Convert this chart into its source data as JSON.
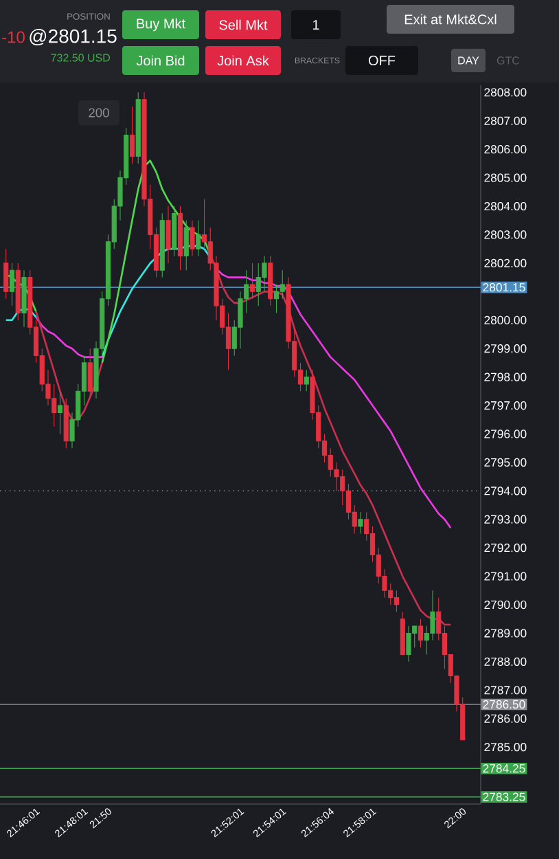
{
  "chart_data": {
    "type": "candlestick",
    "categories": [
      null,
      null,
      null,
      null,
      null,
      "21:46:01",
      null,
      null,
      null,
      null,
      null,
      null,
      null,
      "21:48:01",
      null,
      null,
      null,
      "21:50",
      null,
      null,
      null,
      null,
      null,
      null,
      null,
      null,
      null,
      null,
      null,
      null,
      null,
      null,
      null,
      null,
      null,
      null,
      null,
      null,
      null,
      "21:52:01",
      null,
      null,
      null,
      null,
      null,
      null,
      "21:54:01",
      null,
      null,
      null,
      null,
      null,
      null,
      null,
      "21:56:04",
      null,
      null,
      null,
      null,
      null,
      null,
      "21:58:01",
      null,
      null,
      null,
      null,
      null,
      null,
      null,
      null,
      null,
      null,
      null,
      null,
      null,
      null,
      "22:00"
    ],
    "ohlc": [
      [
        2802.0,
        2802.5,
        2800.75,
        2801.0
      ],
      [
        2801.0,
        2802.0,
        2800.5,
        2801.75
      ],
      [
        2801.75,
        2802.0,
        2800.0,
        2800.25
      ],
      [
        2800.25,
        2801.75,
        2799.75,
        2801.5
      ],
      [
        2801.5,
        2801.75,
        2799.5,
        2799.75
      ],
      [
        2799.75,
        2800.0,
        2798.5,
        2798.75
      ],
      [
        2798.75,
        2799.0,
        2797.5,
        2797.75
      ],
      [
        2797.75,
        2798.25,
        2797.0,
        2797.25
      ],
      [
        2797.25,
        2797.75,
        2796.25,
        2796.75
      ],
      [
        2796.75,
        2797.5,
        2796.0,
        2797.0
      ],
      [
        2797.0,
        2797.25,
        2795.5,
        2795.75
      ],
      [
        2795.75,
        2796.75,
        2795.5,
        2796.5
      ],
      [
        2796.5,
        2797.75,
        2796.25,
        2797.5
      ],
      [
        2797.5,
        2798.75,
        2797.0,
        2798.5
      ],
      [
        2798.5,
        2799.0,
        2797.25,
        2797.5
      ],
      [
        2797.5,
        2799.25,
        2797.25,
        2799.0
      ],
      [
        2799.0,
        2801.0,
        2798.75,
        2800.75
      ],
      [
        2800.75,
        2803.0,
        2800.5,
        2802.75
      ],
      [
        2802.75,
        2804.25,
        2802.5,
        2804.0
      ],
      [
        2804.0,
        2805.25,
        2803.5,
        2805.0
      ],
      [
        2805.0,
        2806.75,
        2804.75,
        2806.5
      ],
      [
        2806.5,
        2807.5,
        2805.5,
        2805.75
      ],
      [
        2805.75,
        2808.0,
        2805.5,
        2807.75
      ],
      [
        2807.75,
        2808.0,
        2804.0,
        2804.25
      ],
      [
        2804.25,
        2804.75,
        2802.5,
        2803.0
      ],
      [
        2803.0,
        2803.25,
        2801.5,
        2801.75
      ],
      [
        2801.75,
        2803.75,
        2801.5,
        2803.5
      ],
      [
        2803.5,
        2804.0,
        2802.0,
        2802.5
      ],
      [
        2802.5,
        2804.0,
        2802.25,
        2803.75
      ],
      [
        2803.75,
        2804.0,
        2801.75,
        2802.25
      ],
      [
        2802.25,
        2803.5,
        2801.75,
        2803.25
      ],
      [
        2803.25,
        2803.5,
        2802.25,
        2802.5
      ],
      [
        2802.5,
        2803.5,
        2802.25,
        2803.0
      ],
      [
        2803.0,
        2804.25,
        2802.5,
        2802.75
      ],
      [
        2802.75,
        2803.25,
        2801.75,
        2802.0
      ],
      [
        2802.0,
        2802.25,
        2800.0,
        2800.5
      ],
      [
        2800.5,
        2800.75,
        2799.5,
        2799.75
      ],
      [
        2799.75,
        2800.25,
        2798.25,
        2799.0
      ],
      [
        2799.0,
        2800.0,
        2798.75,
        2799.75
      ],
      [
        2799.75,
        2801.0,
        2799.0,
        2800.75
      ],
      [
        2800.75,
        2801.75,
        2800.25,
        2801.25
      ],
      [
        2801.25,
        2802.0,
        2800.75,
        2801.0
      ],
      [
        2801.0,
        2802.0,
        2800.5,
        2801.5
      ],
      [
        2801.5,
        2802.25,
        2801.0,
        2802.0
      ],
      [
        2802.0,
        2802.25,
        2800.5,
        2800.75
      ],
      [
        2800.75,
        2801.25,
        2800.25,
        2801.0
      ],
      [
        2801.0,
        2801.75,
        2800.75,
        2801.25
      ],
      [
        2801.25,
        2801.5,
        2799.0,
        2799.25
      ],
      [
        2799.25,
        2799.75,
        2798.0,
        2798.25
      ],
      [
        2798.25,
        2798.5,
        2797.5,
        2797.75
      ],
      [
        2797.75,
        2798.25,
        2797.5,
        2798.0
      ],
      [
        2798.0,
        2798.25,
        2796.5,
        2796.75
      ],
      [
        2796.75,
        2797.0,
        2795.5,
        2795.75
      ],
      [
        2795.75,
        2796.0,
        2795.0,
        2795.25
      ],
      [
        2795.25,
        2795.5,
        2794.5,
        2794.75
      ],
      [
        2794.75,
        2795.0,
        2794.0,
        2794.5
      ],
      [
        2794.5,
        2794.75,
        2793.5,
        2794.0
      ],
      [
        2794.0,
        2794.25,
        2793.0,
        2793.25
      ],
      [
        2793.25,
        2793.5,
        2792.5,
        2792.75
      ],
      [
        2792.75,
        2793.25,
        2792.5,
        2793.0
      ],
      [
        2793.0,
        2793.25,
        2792.25,
        2792.5
      ],
      [
        2792.5,
        2792.75,
        2791.5,
        2791.75
      ],
      [
        2791.75,
        2792.0,
        2790.75,
        2791.0
      ],
      [
        2791.0,
        2791.25,
        2790.25,
        2790.5
      ],
      [
        2790.5,
        2790.75,
        2790.0,
        2790.25
      ],
      [
        2790.25,
        2790.5,
        2789.75,
        2790.0
      ],
      [
        2789.5,
        2789.75,
        2788.25,
        2788.25
      ],
      [
        2788.25,
        2789.25,
        2788.0,
        2789.0
      ],
      [
        2789.0,
        2789.25,
        2788.5,
        2789.25
      ],
      [
        2789.25,
        2789.5,
        2788.5,
        2788.75
      ],
      [
        2788.75,
        2789.25,
        2788.25,
        2789.0
      ],
      [
        2789.0,
        2790.5,
        2788.75,
        2789.75
      ],
      [
        2789.75,
        2790.25,
        2788.75,
        2789.0
      ],
      [
        2789.0,
        2789.25,
        2787.75,
        2788.25
      ],
      [
        2788.25,
        2788.25,
        2787.25,
        2787.5
      ],
      [
        2787.5,
        2787.5,
        2786.25,
        2786.5
      ],
      [
        2786.5,
        2786.75,
        2785.25,
        2785.25
      ]
    ],
    "colors": [
      "#e5303f",
      "#3fae49",
      "#e5303f",
      "#3fae49",
      "#e5303f",
      "#e5303f",
      "#e5303f",
      "#e5303f",
      "#e5303f",
      "#3fae49",
      "#e5303f",
      "#3fae49",
      "#3fae49",
      "#3fae49",
      "#e5303f",
      "#3fae49",
      "#3fae49",
      "#3fae49",
      "#3fae49",
      "#3fae49",
      "#3fae49",
      "#e5303f",
      "#3fae49",
      "#e5303f",
      "#e5303f",
      "#e5303f",
      "#3fae49",
      "#e5303f",
      "#3fae49",
      "#e5303f",
      "#3fae49",
      "#e5303f",
      "#3fae49",
      "#e5303f",
      "#e5303f",
      "#e5303f",
      "#e5303f",
      "#e5303f",
      "#3fae49",
      "#3fae49",
      "#3fae49",
      "#e5303f",
      "#3fae49",
      "#3fae49",
      "#e5303f",
      "#3fae49",
      "#3fae49",
      "#e5303f",
      "#e5303f",
      "#e5303f",
      "#3fae49",
      "#e5303f",
      "#e5303f",
      "#e5303f",
      "#e5303f",
      "#e5303f",
      "#e5303f",
      "#e5303f",
      "#e5303f",
      "#3fae49",
      "#e5303f",
      "#e5303f",
      "#e5303f",
      "#e5303f",
      "#e5303f",
      "#e5303f",
      "#e5303f",
      "#3fae49",
      "#3fae49",
      "#e5303f",
      "#3fae49",
      "#3fae49",
      "#e5303f",
      "#e5303f",
      "#e5303f",
      "#e5303f",
      "#e5303f"
    ],
    "series": [
      {
        "type": "line",
        "color": "#35e8e0",
        "values": [
          2800.0,
          2800.0,
          2800.3,
          2800.4,
          2800.35,
          2800.1,
          null,
          null,
          null,
          null,
          null,
          null,
          null,
          null,
          null,
          null,
          2798.7,
          2799.3,
          2799.8,
          2800.3,
          2800.7,
          2801.1,
          2801.4,
          2801.7,
          2802.0,
          2802.2,
          2802.4,
          2802.5,
          2802.5,
          2802.5,
          2802.6,
          2802.6,
          2802.6,
          2802.5,
          2802.2,
          null,
          null,
          null,
          null,
          null,
          null,
          null,
          null,
          null,
          null,
          null,
          null,
          null,
          null,
          null,
          null,
          null,
          null,
          null,
          null,
          null,
          null,
          null,
          null,
          null,
          null,
          null,
          null,
          null,
          null,
          null,
          null,
          null,
          null,
          null,
          null,
          null,
          null,
          null,
          null,
          null,
          null
        ]
      },
      {
        "type": "line",
        "color": "#e83ae0",
        "values": [
          null,
          null,
          null,
          null,
          null,
          2800.1,
          2799.8,
          2799.6,
          2799.5,
          2799.3,
          2799.1,
          2799.0,
          2798.8,
          2798.7,
          2798.7,
          2798.7,
          2798.7,
          null,
          null,
          null,
          null,
          null,
          null,
          null,
          null,
          null,
          null,
          null,
          null,
          null,
          null,
          null,
          null,
          null,
          null,
          2801.8,
          2801.6,
          2801.5,
          2801.5,
          2801.5,
          2801.5,
          2801.4,
          2801.4,
          2801.3,
          2801.3,
          2801.2,
          2801.2,
          2801.0,
          2800.6,
          2800.2,
          2799.9,
          2799.6,
          2799.3,
          2799.0,
          2798.7,
          2798.5,
          2798.3,
          2798.1,
          2797.9,
          2797.6,
          2797.3,
          2797.0,
          2796.7,
          2796.4,
          2796.1,
          2795.7,
          2795.3,
          2794.9,
          2794.5,
          2794.1,
          2793.8,
          2793.5,
          2793.2,
          2793.0,
          2792.7,
          null,
          null
        ]
      },
      {
        "type": "line",
        "color": "#4fd94f",
        "values": [
          2801.6,
          2801.5,
          2801.3,
          2801.2,
          2800.8,
          2800.3,
          null,
          null,
          null,
          null,
          null,
          null,
          null,
          null,
          null,
          null,
          2798.5,
          2799.3,
          2800.2,
          2801.3,
          2802.4,
          2803.5,
          2804.6,
          2805.4,
          2805.6,
          2805.2,
          2804.6,
          2804.2,
          2803.9,
          2803.6,
          2803.3,
          2803.1,
          2803.0,
          2802.8,
          2802.3,
          null,
          null,
          null,
          null,
          null,
          null,
          null,
          null,
          null,
          null,
          null,
          null,
          null,
          null,
          null,
          null,
          null,
          null,
          null,
          null,
          null,
          null,
          null,
          null,
          null,
          null,
          null,
          null,
          null,
          null,
          null,
          null,
          null,
          null,
          null,
          null,
          null,
          null,
          null,
          null,
          null,
          null
        ]
      },
      {
        "type": "line",
        "color": "#c8304e",
        "values": [
          null,
          null,
          null,
          null,
          null,
          2800.3,
          2799.6,
          2798.9,
          2798.2,
          2797.5,
          2796.9,
          2796.5,
          2796.5,
          2796.8,
          2797.3,
          2797.8,
          2798.5,
          null,
          null,
          null,
          null,
          null,
          null,
          null,
          null,
          null,
          null,
          null,
          null,
          null,
          null,
          null,
          null,
          null,
          2802.3,
          2801.8,
          2801.2,
          2800.8,
          2800.6,
          2800.6,
          2800.7,
          2800.8,
          2800.9,
          2801.0,
          2801.0,
          2801.0,
          2800.9,
          2800.4,
          2799.7,
          2799.1,
          2798.6,
          2798.1,
          2797.5,
          2796.9,
          2796.4,
          2795.9,
          2795.4,
          2795.0,
          2794.6,
          2794.2,
          2793.9,
          2793.5,
          2793.0,
          2792.5,
          2792.0,
          2791.5,
          2791.0,
          2790.6,
          2790.2,
          2789.8,
          2789.6,
          2789.5,
          2789.5,
          2789.3,
          2789.3,
          null,
          null
        ]
      }
    ],
    "ref_lines": [
      {
        "axis": "y",
        "value": 2801.15,
        "label": "2801.15",
        "color": "#4a8cc0",
        "line_style": "solid"
      },
      {
        "axis": "y",
        "value": 2794,
        "color": "#8a8d93",
        "line_style": "dotted"
      },
      {
        "axis": "y",
        "value": 2786.5,
        "label": "2786.50",
        "color": "#8a8d93",
        "line_style": "solid"
      },
      {
        "axis": "y",
        "value": 2784.25,
        "label": "2784.25",
        "color": "#3aa64a",
        "line_style": "solid"
      },
      {
        "axis": "y",
        "value": 2783.25,
        "label": "2783.25",
        "color": "#3aa64a",
        "line_style": "solid"
      }
    ],
    "ylim": [
      2783.0,
      2808.25
    ],
    "yticks": [
      {
        "value": 2785,
        "label": "2785.00"
      },
      {
        "value": 2786,
        "label": "2786.00"
      },
      {
        "value": 2787,
        "label": "2787.00"
      },
      {
        "value": 2788,
        "label": "2788.00"
      },
      {
        "value": 2789,
        "label": "2789.00"
      },
      {
        "value": 2790,
        "label": "2790.00"
      },
      {
        "value": 2791,
        "label": "2791.00"
      },
      {
        "value": 2792,
        "label": "2792.00"
      },
      {
        "value": 2793,
        "label": "2793.00"
      },
      {
        "value": 2794,
        "label": "2794.00"
      },
      {
        "value": 2795,
        "label": "2795.00"
      },
      {
        "value": 2796,
        "label": "2796.00"
      },
      {
        "value": 2797,
        "label": "2797.00"
      },
      {
        "value": 2798,
        "label": "2798.00"
      },
      {
        "value": 2799,
        "label": "2799.00"
      },
      {
        "value": 2800,
        "label": "2800.00"
      },
      {
        "value": 2802,
        "label": "2802.00"
      },
      {
        "value": 2803,
        "label": "2803.00"
      },
      {
        "value": 2804,
        "label": "2804.00"
      },
      {
        "value": 2805,
        "label": "2805.00"
      },
      {
        "value": 2806,
        "label": "2806.00"
      },
      {
        "value": 2807,
        "label": "2807.00"
      },
      {
        "value": 2808,
        "label": "2808.00"
      }
    ],
    "annotations": [
      "POSITION",
      "-10",
      "@2801.15",
      "732.50 USD",
      "Buy Mkt",
      "Sell Mkt",
      "1",
      "Exit at Mkt&Cxl",
      "Join Bid",
      "Join Ask",
      "BRACKETS",
      "OFF",
      "DAY",
      "GTC",
      "200"
    ]
  }
}
